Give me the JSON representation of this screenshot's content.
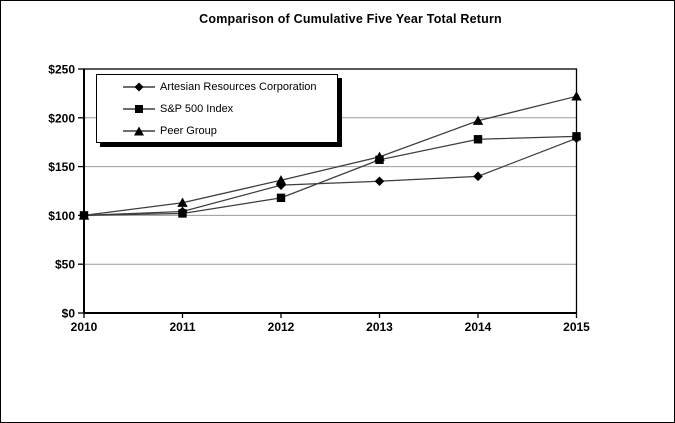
{
  "chart_data": {
    "type": "line",
    "title": "Comparison of Cumulative Five Year Total Return",
    "x_labels": [
      "2010",
      "2011",
      "2012",
      "2013",
      "2014",
      "2015"
    ],
    "series": [
      {
        "name": "Artesian Resources Corporation",
        "marker": "diamond",
        "values": [
          100,
          104,
          131,
          135,
          140,
          179
        ]
      },
      {
        "name": "S&P 500 Index",
        "marker": "square",
        "values": [
          100,
          102,
          118,
          157,
          178,
          181
        ]
      },
      {
        "name": "Peer Group",
        "marker": "triangle",
        "values": [
          100,
          113,
          136,
          160,
          197,
          222
        ]
      }
    ],
    "ylim": [
      0,
      250
    ],
    "y_tick_step": 50,
    "y_tick_labels": [
      "$0",
      "$50",
      "$100",
      "$150",
      "$200",
      "$250"
    ],
    "grid": "horizontal",
    "legend_position": "top-left-inside",
    "colors": {
      "background": "#ffffff",
      "axis": "#000000",
      "grid": "#9a9a9a",
      "line": "#3d3d3d",
      "marker": "#000000",
      "text": "#000000"
    }
  }
}
